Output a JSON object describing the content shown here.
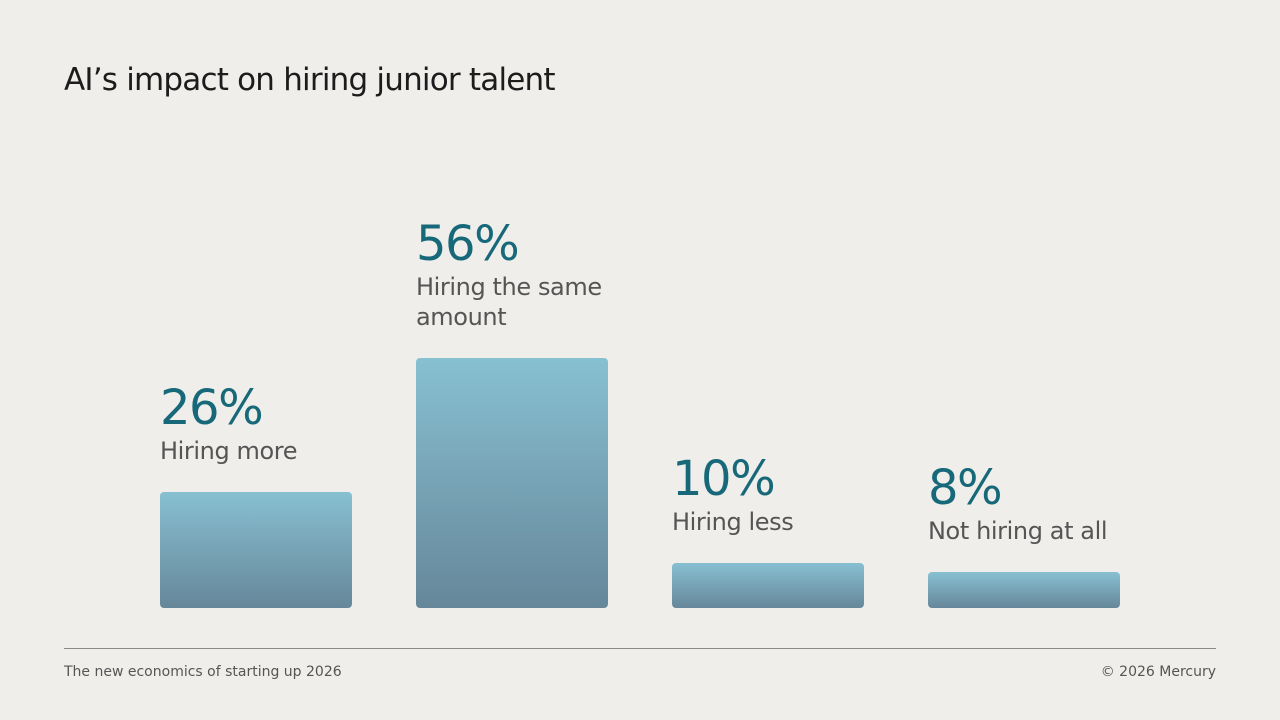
{
  "chart_data": {
    "type": "bar",
    "title": "AI’s impact on hiring junior talent",
    "categories": [
      "Hiring more",
      "Hiring the same amount",
      "Hiring less",
      "Not hiring at all"
    ],
    "values": [
      26,
      56,
      10,
      8
    ],
    "value_labels": [
      "26%",
      "56%",
      "10%",
      "8%"
    ],
    "gradient": [
      "#87c0d1",
      "#66879a"
    ],
    "label_color": "#17697a"
  },
  "footer": {
    "left": "The new economics of starting up 2026",
    "right": "© 2026 Mercury"
  }
}
